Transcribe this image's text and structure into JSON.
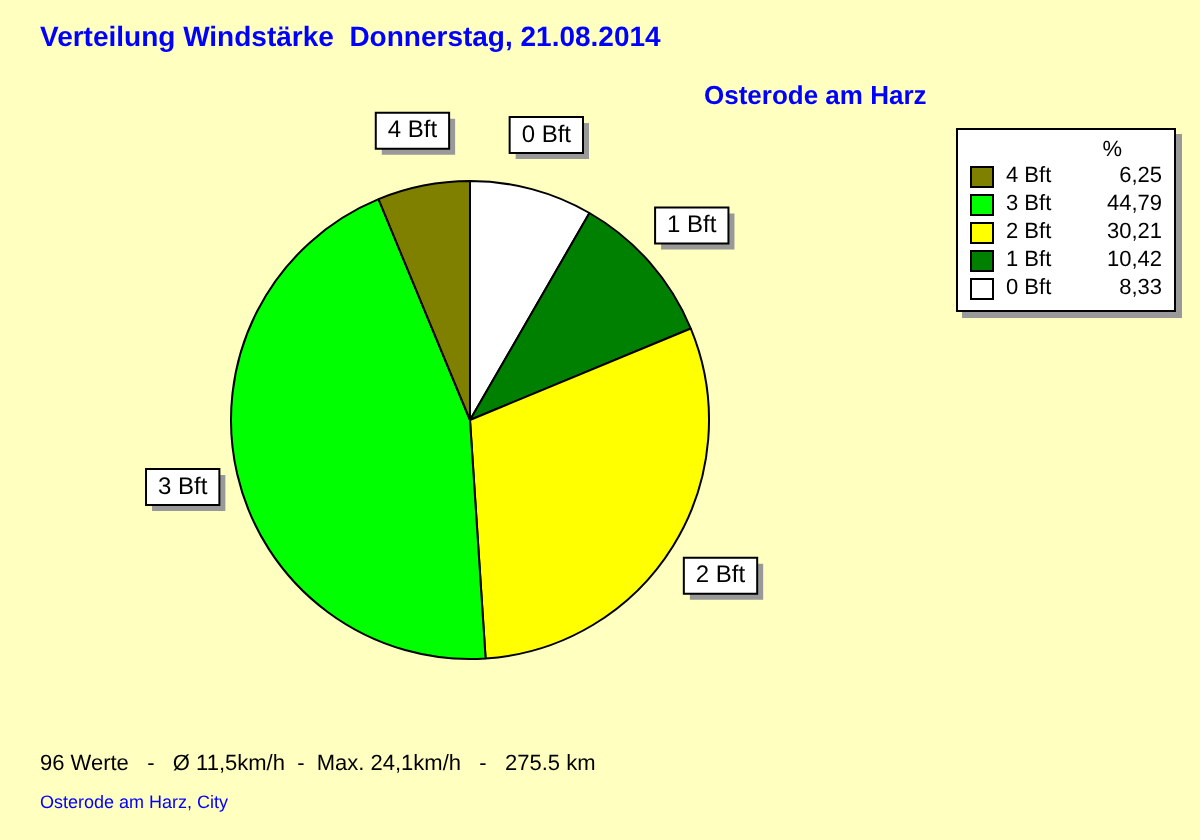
{
  "chart_data": {
    "type": "pie",
    "title": "Verteilung Windstärke  Donnerstag, 21.08.2014",
    "subtitle": "Osterode am Harz",
    "legend_title": "%",
    "categories": [
      "0 Bft",
      "1 Bft",
      "2 Bft",
      "3 Bft",
      "4 Bft"
    ],
    "values": [
      8.33,
      10.42,
      30.21,
      44.79,
      6.25
    ],
    "colors": [
      "#ffffff",
      "#008000",
      "#ffff00",
      "#00ff00",
      "#808000"
    ],
    "value_labels": [
      "8,33",
      "10,42",
      "30,21",
      "44,79",
      "6,25"
    ],
    "legend": "top right",
    "annotations": [
      "96 Werte   -   Ø 11,5km/h  -  Max. 24,1km/h   -   275.5 km",
      "Osterode am Harz, City"
    ]
  }
}
